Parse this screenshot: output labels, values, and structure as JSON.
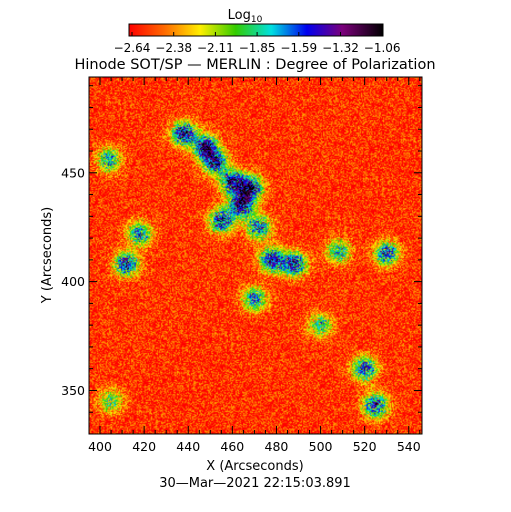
{
  "colorbar": {
    "label_base": "Log",
    "label_sub": "10",
    "tick_labels": [
      "−2.64",
      "−2.38",
      "−2.11",
      "−1.85",
      "−1.59",
      "−1.32",
      "−1.06"
    ],
    "range": [
      -2.64,
      -1.06
    ],
    "colormap": "rainbow (red → yellow → green → cyan → blue → purple → black)"
  },
  "chart_data": {
    "type": "heatmap",
    "title": "Hinode SOT/SP — MERLIN : Degree of Polarization",
    "xlabel": "X (Arcseconds)",
    "ylabel": "Y (Arcseconds)",
    "xlim": [
      395,
      546
    ],
    "ylim": [
      330,
      494
    ],
    "xticks": [
      400,
      420,
      440,
      460,
      480,
      500,
      520,
      540
    ],
    "yticks": [
      350,
      400,
      450
    ],
    "value_range": [
      -2.64,
      -1.06
    ],
    "background_level": -2.55,
    "features": [
      {
        "x": 438,
        "y": 468,
        "level": -1.25
      },
      {
        "x": 448,
        "y": 462,
        "level": -1.3
      },
      {
        "x": 452,
        "y": 455,
        "level": -1.35
      },
      {
        "x": 460,
        "y": 446,
        "level": -1.35
      },
      {
        "x": 468,
        "y": 443,
        "level": -1.2
      },
      {
        "x": 464,
        "y": 435,
        "level": -1.25
      },
      {
        "x": 455,
        "y": 428,
        "level": -1.4
      },
      {
        "x": 472,
        "y": 425,
        "level": -1.55
      },
      {
        "x": 478,
        "y": 410,
        "level": -1.3
      },
      {
        "x": 488,
        "y": 408,
        "level": -1.35
      },
      {
        "x": 470,
        "y": 392,
        "level": -1.6
      },
      {
        "x": 412,
        "y": 408,
        "level": -1.4
      },
      {
        "x": 418,
        "y": 422,
        "level": -1.6
      },
      {
        "x": 404,
        "y": 456,
        "level": -1.7
      },
      {
        "x": 520,
        "y": 360,
        "level": -1.45
      },
      {
        "x": 525,
        "y": 343,
        "level": -1.4
      },
      {
        "x": 530,
        "y": 413,
        "level": -1.5
      },
      {
        "x": 508,
        "y": 414,
        "level": -1.7
      },
      {
        "x": 500,
        "y": 380,
        "level": -1.8
      },
      {
        "x": 405,
        "y": 345,
        "level": -1.9
      }
    ]
  },
  "timestamp": "30—Mar—2021 22:15:03.891"
}
